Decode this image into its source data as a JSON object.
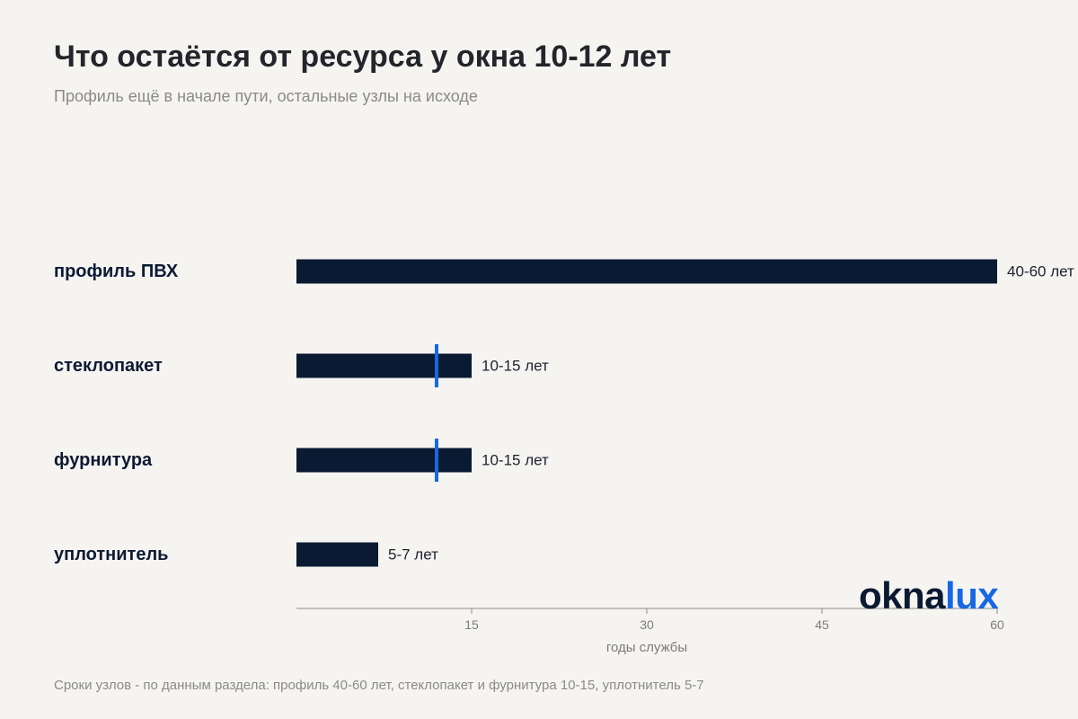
{
  "chart_data": {
    "type": "bar",
    "orientation": "horizontal",
    "title": "Что остаётся от ресурса у окна 10-12 лет",
    "subtitle": "Профиль ещё в начале пути, остальные узлы на исходе",
    "categories": [
      "профиль ПВХ",
      "стеклопакет",
      "фурнитура",
      "уплотнитель"
    ],
    "values": [
      60,
      15,
      15,
      7
    ],
    "value_labels": [
      "40-60 лет",
      "10-15 лет",
      "10-15 лет",
      "5-7 лет"
    ],
    "markers": [
      null,
      12,
      12,
      null
    ],
    "xlabel": "годы службы",
    "ylabel": "",
    "xlim": [
      0,
      60
    ],
    "xticks": [
      15,
      30,
      45,
      60
    ],
    "grid": false,
    "colors": {
      "bar": "#0b1a33",
      "marker": "#1668e3",
      "axis": "#8c8c8c"
    }
  },
  "footnote": "Сроки узлов - по данным раздела: профиль 40-60 лет, стеклопакет и фурнитура 10-15, уплотнитель 5-7",
  "logo": {
    "part1": "okna",
    "part2": "lux"
  }
}
